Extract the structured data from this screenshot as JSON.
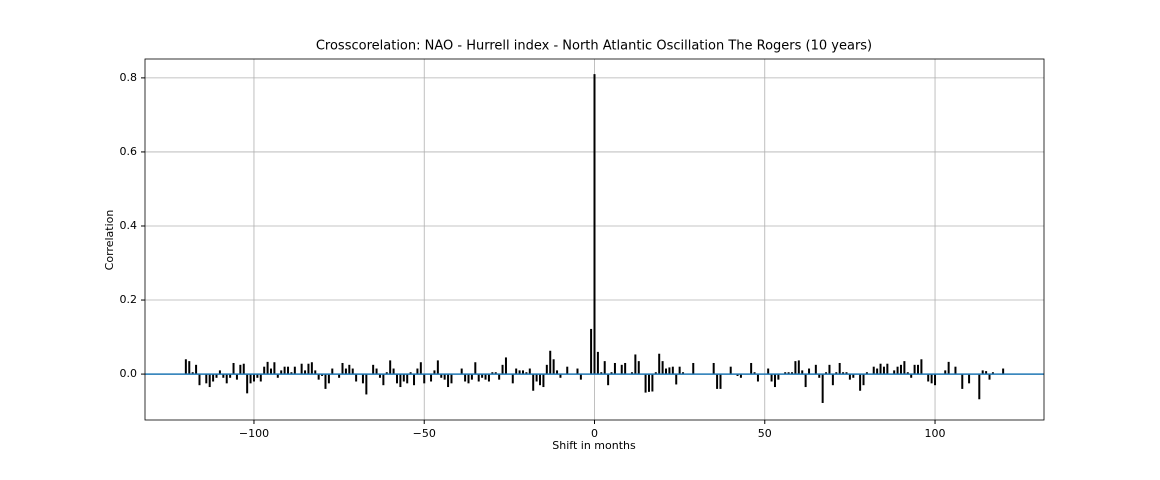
{
  "chart_data": {
    "type": "xcorr",
    "title": "Crosscorelation: NAO - Hurrell index - North Atlantic Oscillation The Rogers (10 years)",
    "xlabel": "Shift in months",
    "ylabel": "Correlation",
    "x": [
      -120,
      -119,
      -118,
      -117,
      -116,
      -115,
      -114,
      -113,
      -112,
      -111,
      -110,
      -109,
      -108,
      -107,
      -106,
      -105,
      -104,
      -103,
      -102,
      -101,
      -100,
      -99,
      -98,
      -97,
      -96,
      -95,
      -94,
      -93,
      -92,
      -91,
      -90,
      -89,
      -88,
      -87,
      -86,
      -85,
      -84,
      -83,
      -82,
      -81,
      -80,
      -79,
      -78,
      -77,
      -76,
      -75,
      -74,
      -73,
      -72,
      -71,
      -70,
      -69,
      -68,
      -67,
      -66,
      -65,
      -64,
      -63,
      -62,
      -61,
      -60,
      -59,
      -58,
      -57,
      -56,
      -55,
      -54,
      -53,
      -52,
      -51,
      -50,
      -49,
      -48,
      -47,
      -46,
      -45,
      -44,
      -43,
      -42,
      -41,
      -40,
      -39,
      -38,
      -37,
      -36,
      -35,
      -34,
      -33,
      -32,
      -31,
      -30,
      -29,
      -28,
      -27,
      -26,
      -25,
      -24,
      -23,
      -22,
      -21,
      -20,
      -19,
      -18,
      -17,
      -16,
      -15,
      -14,
      -13,
      -12,
      -11,
      -10,
      -9,
      -8,
      -7,
      -6,
      -5,
      -4,
      -3,
      -2,
      -1,
      0,
      1,
      2,
      3,
      4,
      5,
      6,
      7,
      8,
      9,
      10,
      11,
      12,
      13,
      14,
      15,
      16,
      17,
      18,
      19,
      20,
      21,
      22,
      23,
      24,
      25,
      26,
      27,
      28,
      29,
      30,
      31,
      32,
      33,
      34,
      35,
      36,
      37,
      38,
      39,
      40,
      41,
      42,
      43,
      44,
      45,
      46,
      47,
      48,
      49,
      50,
      51,
      52,
      53,
      54,
      55,
      56,
      57,
      58,
      59,
      60,
      61,
      62,
      63,
      64,
      65,
      66,
      67,
      68,
      69,
      70,
      71,
      72,
      73,
      74,
      75,
      76,
      77,
      78,
      79,
      80,
      81,
      82,
      83,
      84,
      85,
      86,
      87,
      88,
      89,
      90,
      91,
      92,
      93,
      94,
      95,
      96,
      97,
      98,
      99,
      100,
      101,
      102,
      103,
      104,
      105,
      106,
      107,
      108,
      109,
      110,
      111,
      112,
      113,
      114,
      115,
      116,
      117,
      118,
      119,
      120
    ],
    "values": [
      0.04,
      0.035,
      0.005,
      0.025,
      -0.03,
      0,
      -0.025,
      -0.035,
      -0.02,
      -0.01,
      0.01,
      -0.01,
      -0.025,
      -0.01,
      0.03,
      -0.015,
      0.025,
      0.028,
      -0.052,
      -0.025,
      -0.02,
      -0.01,
      -0.02,
      0.02,
      0.033,
      0.015,
      0.032,
      -0.01,
      0.01,
      0.02,
      0.02,
      0.005,
      0.02,
      0,
      0.028,
      0.01,
      0.028,
      0.032,
      0.01,
      -0.015,
      -0.005,
      -0.04,
      -0.025,
      0.015,
      0,
      -0.01,
      0.03,
      0.015,
      0.025,
      0.015,
      -0.02,
      0,
      -0.025,
      -0.055,
      0,
      0.025,
      0.015,
      -0.01,
      -0.03,
      0.005,
      0.037,
      0.015,
      -0.025,
      -0.035,
      -0.02,
      -0.025,
      0.005,
      -0.03,
      0.015,
      0.032,
      -0.025,
      0,
      -0.02,
      0.01,
      0.037,
      -0.01,
      -0.015,
      -0.035,
      -0.025,
      0,
      0,
      0.015,
      -0.02,
      -0.025,
      -0.015,
      0.032,
      -0.02,
      -0.01,
      -0.015,
      -0.02,
      0.005,
      0.005,
      -0.015,
      0.025,
      0.045,
      0,
      -0.025,
      0.015,
      0.01,
      0.01,
      0.005,
      0.015,
      -0.045,
      -0.02,
      -0.03,
      -0.035,
      0.025,
      0.063,
      0.04,
      0.01,
      -0.01,
      0,
      0.02,
      0,
      0,
      0.015,
      -0.015,
      0,
      0,
      0.122,
      0.81,
      0.06,
      0.005,
      0.035,
      -0.03,
      0.005,
      0.03,
      0,
      0.025,
      0.03,
      0,
      0.005,
      0.053,
      0.035,
      0,
      -0.05,
      -0.048,
      -0.047,
      0.005,
      0.055,
      0.035,
      0.015,
      0.018,
      0.02,
      -0.028,
      0.02,
      0.005,
      0,
      0,
      0.03,
      0,
      0,
      0,
      0,
      0,
      0.03,
      -0.04,
      -0.04,
      0,
      0,
      0.02,
      0,
      -0.005,
      -0.01,
      0,
      0,
      0.03,
      0.005,
      -0.02,
      0,
      0,
      0.015,
      -0.02,
      -0.035,
      -0.015,
      0,
      0.005,
      0.005,
      0.005,
      0.035,
      0.037,
      0.01,
      -0.035,
      0.015,
      0,
      0.025,
      -0.01,
      -0.078,
      0.005,
      0.025,
      -0.03,
      0.005,
      0.03,
      0.005,
      0.005,
      -0.015,
      -0.01,
      0,
      -0.045,
      -0.03,
      0.005,
      0,
      0.02,
      0.015,
      0.028,
      0.02,
      0.028,
      0,
      0.01,
      0.02,
      0.025,
      0.035,
      0.005,
      -0.01,
      0.025,
      0.025,
      0.04,
      0,
      -0.02,
      -0.025,
      -0.03,
      0,
      0,
      0.01,
      0.033,
      0,
      0.02,
      0,
      -0.04,
      0,
      -0.025,
      0,
      0,
      -0.068,
      0.01,
      0.008,
      -0.015,
      0.005,
      0,
      0,
      0.015
    ],
    "color": "#000000",
    "hline": 0,
    "hline_color": "#1f77b4",
    "xlim": [
      -132,
      132
    ],
    "ylim": [
      -0.124,
      0.851
    ],
    "xticks": [
      {
        "value": -100,
        "label": "−100"
      },
      {
        "value": -50,
        "label": "−50"
      },
      0,
      50,
      100
    ],
    "yticks": [
      {
        "value": 0,
        "label": "0.0"
      },
      0.2,
      0.4,
      0.6,
      0.8
    ],
    "grid": true
  }
}
